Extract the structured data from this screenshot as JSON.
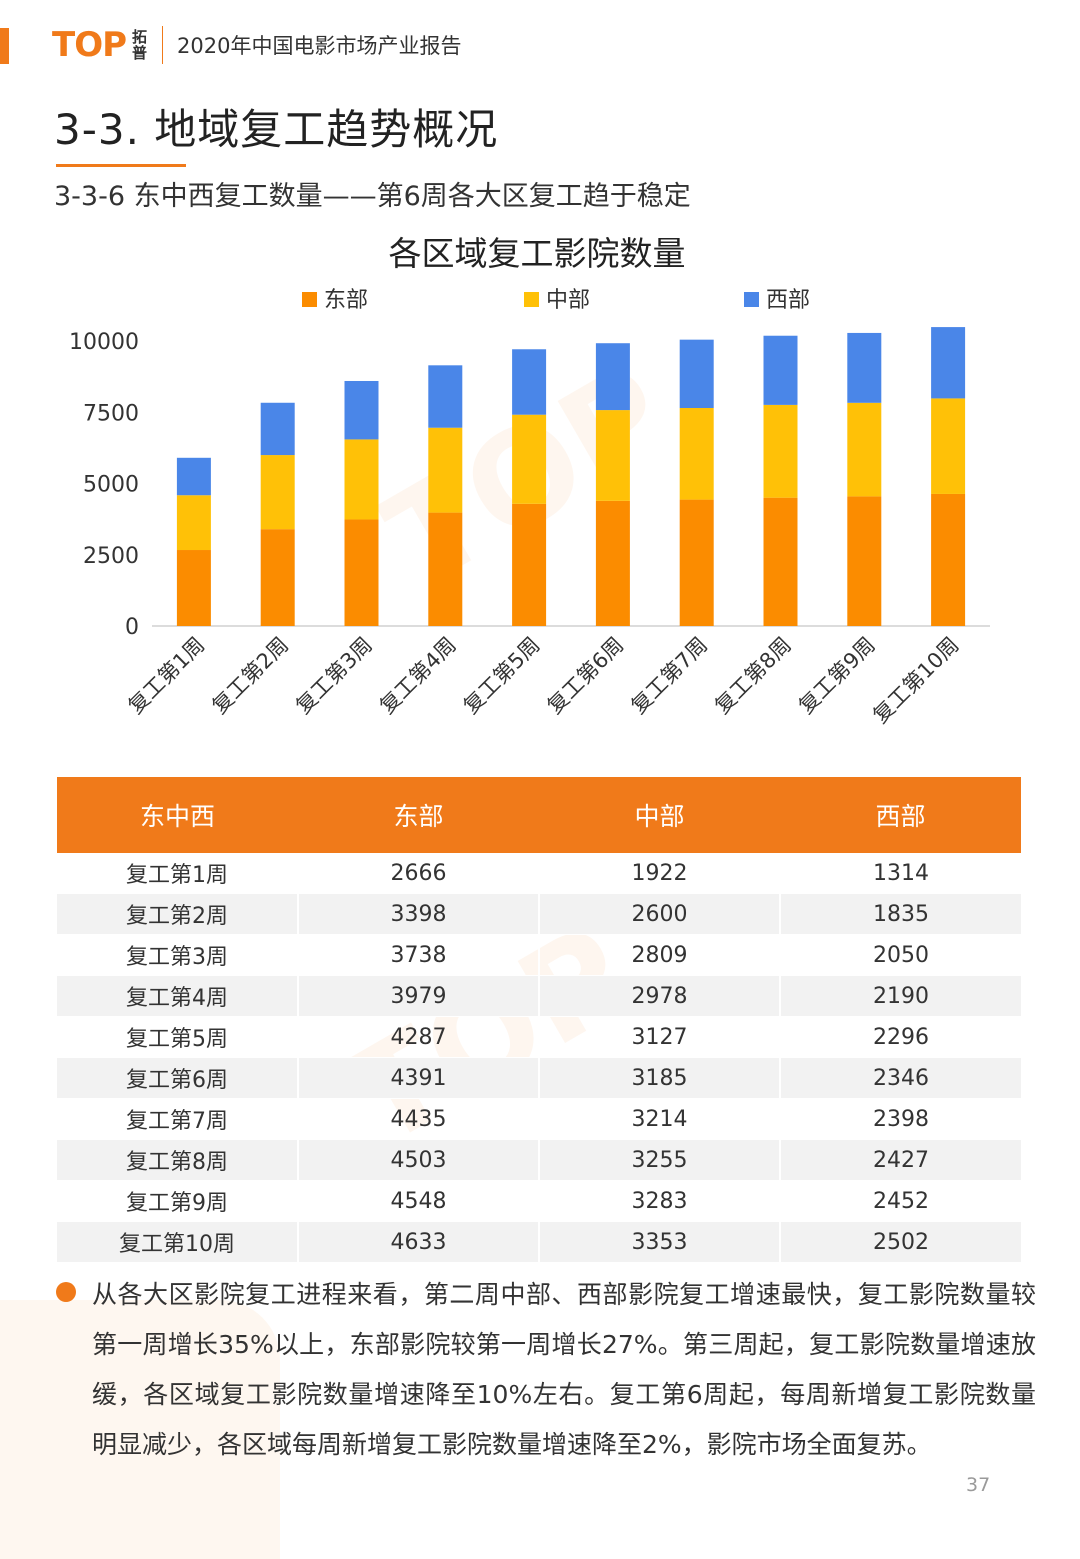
{
  "header": {
    "logo_text": "TOP",
    "logo_cn": "拓普",
    "report_title": "2020年中国电影市场产业报告"
  },
  "section_title": "3-3.  地域复工趋势概况",
  "sub_title": "3-3-6 东中西复工数量——第6周各大区复工趋于稳定",
  "brand_color": "#f07a1a",
  "chart_data": {
    "type": "bar",
    "stacked": true,
    "title": "各区域复工影院数量",
    "categories": [
      "复工第1周",
      "复工第2周",
      "复工第3周",
      "复工第4周",
      "复工第5周",
      "复工第6周",
      "复工第7周",
      "复工第8周",
      "复工第9周",
      "复工第10周"
    ],
    "series": [
      {
        "name": "东部",
        "color": "#fb8c00",
        "values": [
          2666,
          3398,
          3738,
          3979,
          4287,
          4391,
          4435,
          4503,
          4548,
          4633
        ]
      },
      {
        "name": "中部",
        "color": "#ffc107",
        "values": [
          1922,
          2600,
          2809,
          2978,
          3127,
          3185,
          3214,
          3255,
          3283,
          3353
        ]
      },
      {
        "name": "西部",
        "color": "#4a86e8",
        "values": [
          1314,
          1835,
          2050,
          2190,
          2296,
          2346,
          2398,
          2427,
          2452,
          2502
        ]
      }
    ],
    "ylim": [
      0,
      10000
    ],
    "yticks": [
      0,
      2500,
      5000,
      7500,
      10000
    ],
    "legend": "top",
    "grid": false
  },
  "table": {
    "headers": [
      "东中西",
      "东部",
      "中部",
      "西部"
    ],
    "rows": [
      [
        "复工第1周",
        "2666",
        "1922",
        "1314"
      ],
      [
        "复工第2周",
        "3398",
        "2600",
        "1835"
      ],
      [
        "复工第3周",
        "3738",
        "2809",
        "2050"
      ],
      [
        "复工第4周",
        "3979",
        "2978",
        "2190"
      ],
      [
        "复工第5周",
        "4287",
        "3127",
        "2296"
      ],
      [
        "复工第6周",
        "4391",
        "3185",
        "2346"
      ],
      [
        "复工第7周",
        "4435",
        "3214",
        "2398"
      ],
      [
        "复工第8周",
        "4503",
        "3255",
        "2427"
      ],
      [
        "复工第9周",
        "4548",
        "3283",
        "2452"
      ],
      [
        "复工第10周",
        "4633",
        "3353",
        "2502"
      ]
    ]
  },
  "bullet_text": "从各大区影院复工进程来看，第二周中部、西部影院复工增速最快，复工影院数量较第一周增长35%以上，东部影院较第一周增长27%。第三周起，复工影院数量增速放缓，各区域复工影院数量增速降至10%左右。复工第6周起，每周新增复工影院数量明显减少，各区域每周新增复工影院数量增速降至2%，影院市场全面复苏。",
  "page_number": "37"
}
